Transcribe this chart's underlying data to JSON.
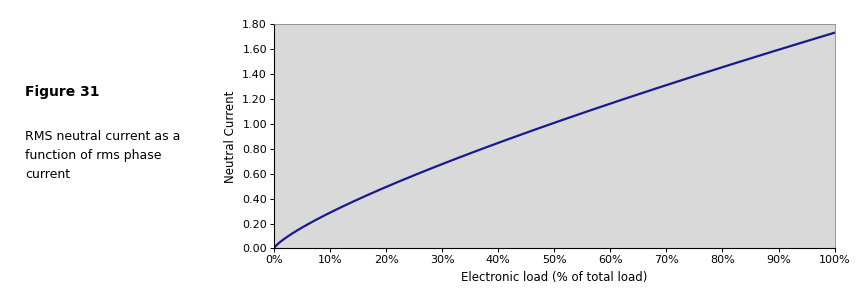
{
  "title_bold": "Figure 31",
  "title_text": "RMS neutral current as a\nfunction of rms phase\ncurrent",
  "xlabel": "Electronic load (% of total load)",
  "ylabel": "Neutral Current",
  "xlim": [
    0,
    1.0
  ],
  "ylim": [
    0.0,
    1.8
  ],
  "xticks": [
    0.0,
    0.1,
    0.2,
    0.3,
    0.4,
    0.5,
    0.6,
    0.7,
    0.8,
    0.9,
    1.0
  ],
  "yticks": [
    0.0,
    0.2,
    0.4,
    0.6,
    0.8,
    1.0,
    1.2,
    1.4,
    1.6,
    1.8
  ],
  "curve_color": "#1a1a8c",
  "bg_color": "#d9d9d9",
  "fig_bg": "#ffffff",
  "curve_linewidth": 1.6,
  "curve_exponent": 0.65
}
